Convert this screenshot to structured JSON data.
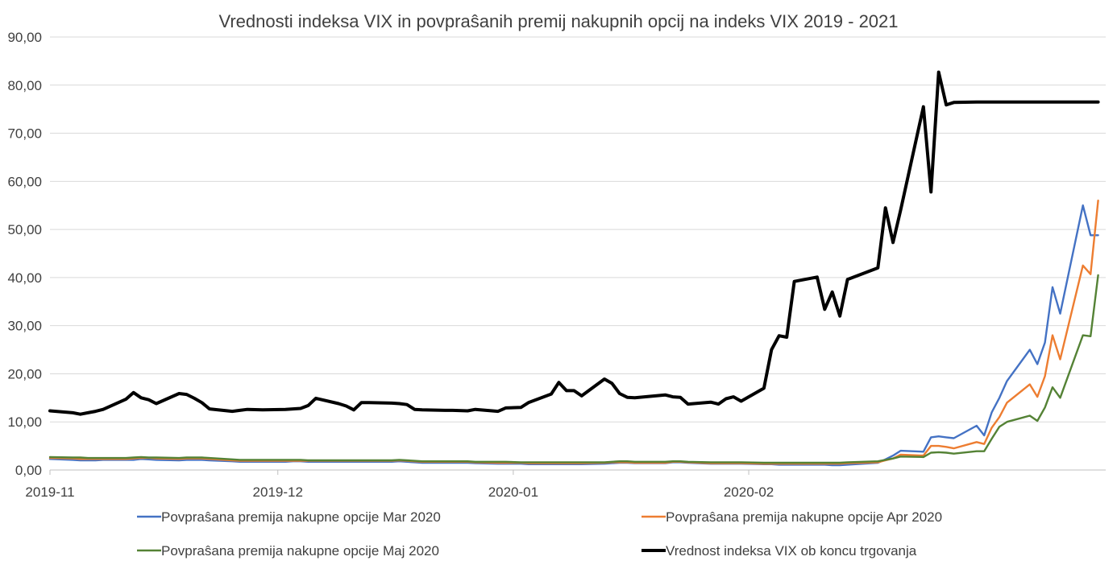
{
  "chart_data": {
    "type": "line",
    "title": "Vrednosti indeksa VIX in povpraŝanih premij nakupnih opcij na indeks VIX 2019 - 2021",
    "xlabel": "",
    "ylabel": "",
    "ylim": [
      0,
      90
    ],
    "y_ticks": [
      "0,00",
      "10,00",
      "20,00",
      "30,00",
      "40,00",
      "50,00",
      "60,00",
      "70,00",
      "80,00",
      "90,00"
    ],
    "x_ticks": [
      "2019-11",
      "2019-12",
      "2020-01",
      "2020-02"
    ],
    "grid": true,
    "legend_position": "bottom",
    "x": [
      "2019-11-01",
      "2019-11-04",
      "2019-11-05",
      "2019-11-06",
      "2019-11-07",
      "2019-11-08",
      "2019-11-11",
      "2019-11-12",
      "2019-11-13",
      "2019-11-14",
      "2019-11-15",
      "2019-11-18",
      "2019-11-19",
      "2019-11-20",
      "2019-11-21",
      "2019-11-22",
      "2019-11-25",
      "2019-11-26",
      "2019-11-27",
      "2019-11-29",
      "2019-12-02",
      "2019-12-03",
      "2019-12-04",
      "2019-12-05",
      "2019-12-06",
      "2019-12-09",
      "2019-12-10",
      "2019-12-11",
      "2019-12-12",
      "2019-12-13",
      "2019-12-16",
      "2019-12-17",
      "2019-12-18",
      "2019-12-19",
      "2019-12-20",
      "2019-12-23",
      "2019-12-24",
      "2019-12-26",
      "2019-12-27",
      "2019-12-30",
      "2019-12-31",
      "2020-01-02",
      "2020-01-03",
      "2020-01-06",
      "2020-01-07",
      "2020-01-08",
      "2020-01-09",
      "2020-01-10",
      "2020-01-13",
      "2020-01-14",
      "2020-01-15",
      "2020-01-16",
      "2020-01-17",
      "2020-01-21",
      "2020-01-22",
      "2020-01-23",
      "2020-01-24",
      "2020-01-27",
      "2020-01-28",
      "2020-01-29",
      "2020-01-30",
      "2020-01-31",
      "2020-02-03",
      "2020-02-04",
      "2020-02-05",
      "2020-02-06",
      "2020-02-07",
      "2020-02-10",
      "2020-02-11",
      "2020-02-12",
      "2020-02-13",
      "2020-02-14",
      "2020-02-18",
      "2020-02-19",
      "2020-02-20",
      "2020-02-21",
      "2020-02-24",
      "2020-02-25",
      "2020-02-26",
      "2020-02-27",
      "2020-02-28",
      "2020-03-02",
      "2020-03-03",
      "2020-03-04",
      "2020-03-05",
      "2020-03-06",
      "2020-03-09",
      "2020-03-10",
      "2020-03-11",
      "2020-03-12",
      "2020-03-13",
      "2020-03-16",
      "2020-03-17",
      "2020-03-18"
    ],
    "series": [
      {
        "name": "Povpraŝana premija nakupne opcije Mar 2020",
        "color": "#4472c4",
        "values": [
          2.3,
          2.1,
          2.0,
          2.0,
          2.0,
          2.1,
          2.1,
          2.1,
          2.3,
          2.2,
          2.1,
          2.0,
          2.1,
          2.1,
          2.1,
          2.0,
          1.8,
          1.7,
          1.7,
          1.7,
          1.7,
          1.8,
          1.8,
          1.7,
          1.7,
          1.7,
          1.7,
          1.7,
          1.7,
          1.7,
          1.7,
          1.8,
          1.7,
          1.6,
          1.5,
          1.5,
          1.5,
          1.5,
          1.4,
          1.3,
          1.3,
          1.3,
          1.2,
          1.2,
          1.2,
          1.2,
          1.2,
          1.2,
          1.3,
          1.4,
          1.5,
          1.5,
          1.4,
          1.4,
          1.6,
          1.6,
          1.5,
          1.3,
          1.3,
          1.3,
          1.3,
          1.3,
          1.2,
          1.2,
          1.1,
          1.1,
          1.1,
          1.1,
          1.1,
          1.0,
          1.0,
          1.1,
          1.5,
          2.2,
          3.0,
          4.0,
          3.8,
          6.8,
          7.0,
          6.8,
          6.6,
          9.2,
          7.2,
          12.0,
          15.0,
          18.5,
          25.0,
          22.0,
          26.5,
          38.0,
          32.5,
          55.0,
          48.8,
          48.8
        ]
      },
      {
        "name": "Povpraŝana premija nakupne opcije Apr 2020",
        "color": "#ed7d31",
        "values": [
          2.5,
          2.4,
          2.3,
          2.3,
          2.3,
          2.3,
          2.3,
          2.4,
          2.5,
          2.5,
          2.4,
          2.3,
          2.4,
          2.4,
          2.4,
          2.3,
          2.0,
          1.9,
          1.9,
          1.9,
          1.9,
          1.9,
          1.9,
          1.9,
          1.9,
          1.9,
          1.9,
          1.9,
          1.9,
          1.9,
          1.9,
          2.0,
          1.9,
          1.8,
          1.7,
          1.7,
          1.7,
          1.7,
          1.6,
          1.5,
          1.5,
          1.5,
          1.4,
          1.4,
          1.4,
          1.4,
          1.4,
          1.4,
          1.5,
          1.6,
          1.6,
          1.6,
          1.5,
          1.5,
          1.7,
          1.7,
          1.6,
          1.4,
          1.4,
          1.4,
          1.4,
          1.4,
          1.3,
          1.3,
          1.3,
          1.3,
          1.3,
          1.3,
          1.3,
          1.3,
          1.3,
          1.4,
          1.6,
          2.0,
          2.4,
          3.2,
          3.0,
          5.0,
          5.0,
          4.8,
          4.5,
          5.8,
          5.4,
          8.8,
          11.0,
          14.0,
          17.8,
          15.2,
          19.5,
          28.0,
          23.0,
          42.5,
          40.7,
          56.0
        ]
      },
      {
        "name": "Povpraŝana premija nakupne opcije Maj 2020",
        "color": "#548235",
        "values": [
          2.7,
          2.6,
          2.6,
          2.5,
          2.5,
          2.5,
          2.5,
          2.6,
          2.7,
          2.6,
          2.6,
          2.5,
          2.6,
          2.6,
          2.6,
          2.5,
          2.2,
          2.1,
          2.1,
          2.1,
          2.1,
          2.1,
          2.1,
          2.0,
          2.0,
          2.0,
          2.0,
          2.0,
          2.0,
          2.0,
          2.0,
          2.1,
          2.0,
          1.9,
          1.8,
          1.8,
          1.8,
          1.8,
          1.7,
          1.7,
          1.7,
          1.6,
          1.6,
          1.6,
          1.6,
          1.6,
          1.6,
          1.6,
          1.6,
          1.7,
          1.8,
          1.8,
          1.7,
          1.7,
          1.8,
          1.8,
          1.7,
          1.6,
          1.6,
          1.6,
          1.6,
          1.6,
          1.5,
          1.5,
          1.5,
          1.5,
          1.5,
          1.5,
          1.5,
          1.5,
          1.5,
          1.6,
          1.8,
          2.1,
          2.4,
          2.8,
          2.7,
          3.6,
          3.7,
          3.6,
          3.4,
          3.9,
          3.9,
          6.5,
          9.0,
          10.0,
          11.3,
          10.2,
          13.0,
          17.2,
          15.0,
          28.0,
          27.8,
          40.5
        ]
      },
      {
        "name": "Vrednost indeksa VIX ob koncu trgovanja",
        "color": "#000000",
        "values": [
          12.3,
          11.9,
          11.6,
          11.9,
          12.2,
          12.6,
          14.7,
          16.1,
          15.0,
          14.6,
          13.8,
          15.9,
          15.7,
          14.9,
          14.0,
          12.7,
          12.2,
          12.4,
          12.6,
          12.5,
          12.6,
          12.7,
          12.8,
          13.4,
          14.9,
          13.8,
          13.3,
          12.5,
          14.0,
          14.0,
          13.9,
          13.8,
          13.6,
          12.6,
          12.5,
          12.4,
          12.4,
          12.3,
          12.6,
          12.2,
          12.9,
          13.0,
          14.0,
          15.8,
          18.2,
          16.5,
          16.5,
          15.4,
          18.9,
          18.0,
          15.9,
          15.1,
          15.0,
          15.6,
          15.2,
          15.1,
          13.7,
          14.1,
          13.7,
          14.8,
          15.2,
          14.3,
          17.0,
          25.0,
          27.9,
          27.6,
          39.2,
          40.1,
          33.4,
          37.0,
          32.0,
          39.6,
          42.0,
          54.5,
          47.3,
          54.0,
          75.5,
          57.8,
          82.7,
          75.9,
          76.4,
          76.5,
          76.5,
          76.5,
          76.5,
          76.5,
          76.5,
          76.5,
          76.5,
          76.5,
          76.5,
          76.5,
          76.5,
          76.5
        ]
      }
    ]
  }
}
